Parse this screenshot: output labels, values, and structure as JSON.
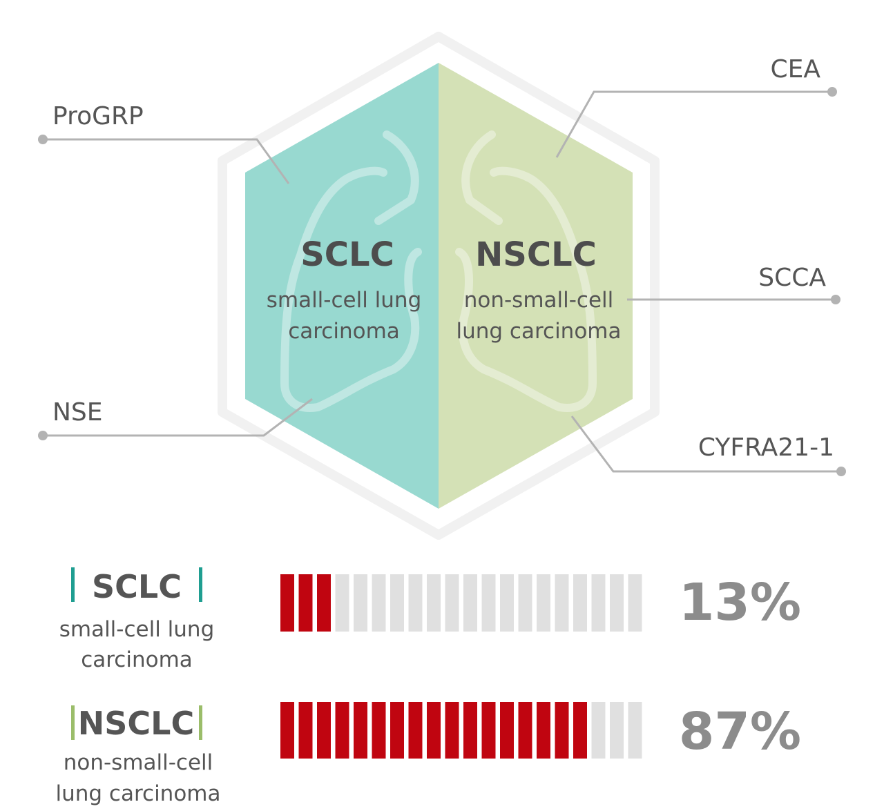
{
  "hexagon": {
    "left": {
      "title": "SCLC",
      "subtitle_line1": "small-cell lung",
      "subtitle_line2": "carcinoma",
      "color": "#98d9d0"
    },
    "right": {
      "title": "NSCLC",
      "subtitle_line1": "non-small-cell",
      "subtitle_line2": "lung carcinoma",
      "color": "#d4e1b6"
    }
  },
  "markers": {
    "progrp": "ProGRP",
    "nse": "NSE",
    "cea": "CEA",
    "scca": "SCCA",
    "cyfra": "CYFRA21-1"
  },
  "colors": {
    "active_segment": "#c00510",
    "inactive_segment": "#e0e0e0",
    "sclc_accent": "#1f9e91",
    "nsclc_accent": "#9bbd6a"
  },
  "rows": [
    {
      "title": "SCLC",
      "subtitle_line1": "small-cell lung",
      "subtitle_line2": "carcinoma",
      "percent": 13,
      "percent_label": "13%"
    },
    {
      "title": "NSCLC",
      "subtitle_line1": "non-small-cell",
      "subtitle_line2": "lung carcinoma",
      "percent": 87,
      "percent_label": "87%"
    }
  ]
}
